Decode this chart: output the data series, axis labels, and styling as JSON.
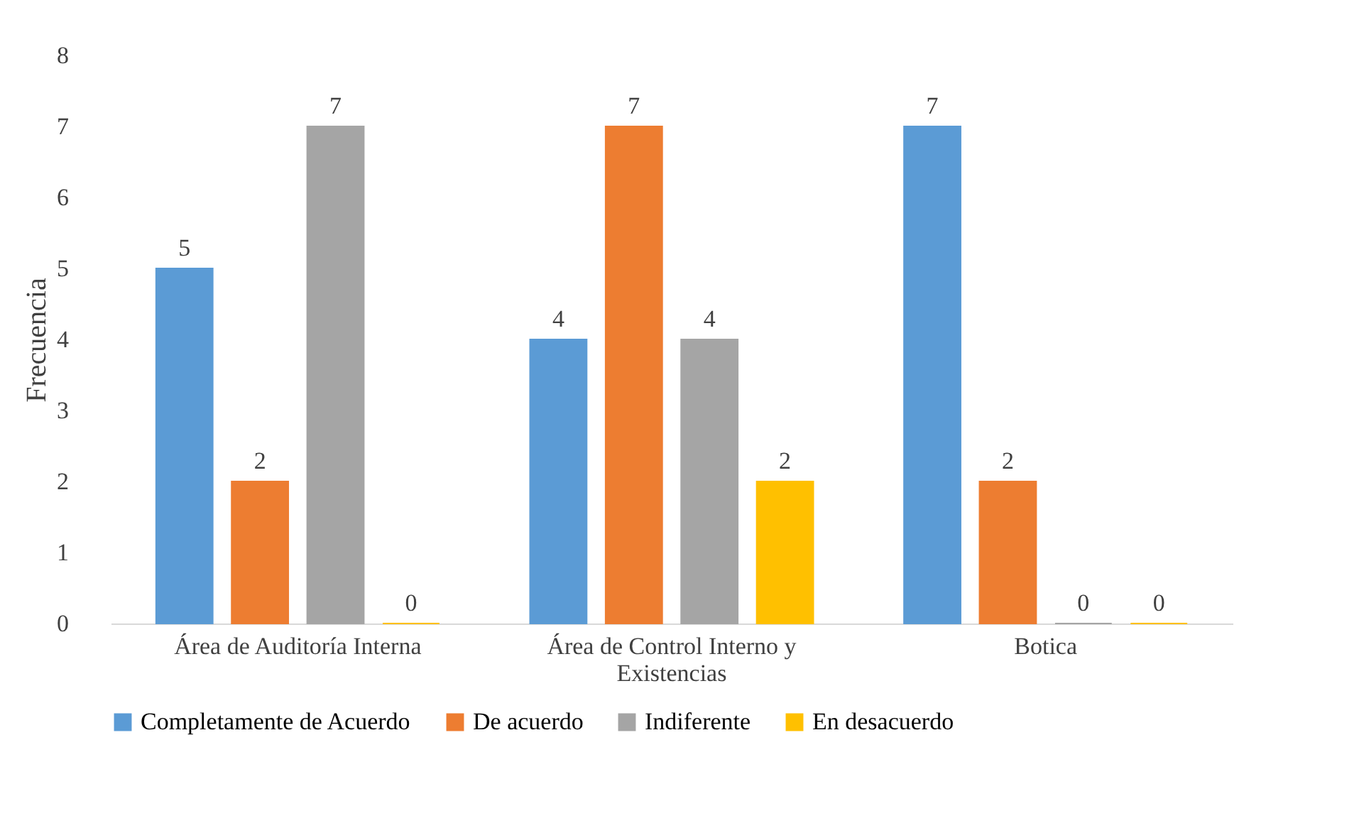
{
  "chart_data": {
    "type": "bar",
    "ylabel": "Frecuencia",
    "categories": [
      "Área de Auditoría Interna",
      "Área de Control Interno y Existencias",
      "Botica"
    ],
    "series": [
      {
        "name": "Completamente de Acuerdo",
        "color": "#5b9bd5",
        "values": [
          5,
          4,
          7
        ]
      },
      {
        "name": "De acuerdo",
        "color": "#ed7d31",
        "values": [
          2,
          7,
          2
        ]
      },
      {
        "name": "Indiferente",
        "color": "#a5a5a5",
        "values": [
          7,
          4,
          0
        ]
      },
      {
        "name": "En desacuerdo",
        "color": "#ffc000",
        "values": [
          0,
          2,
          0
        ]
      }
    ],
    "ylim": [
      0,
      8
    ],
    "yticks": [
      0,
      1,
      2,
      3,
      4,
      5,
      6,
      7,
      8
    ],
    "grid": false,
    "legend": "bottom",
    "data_labels": true
  }
}
